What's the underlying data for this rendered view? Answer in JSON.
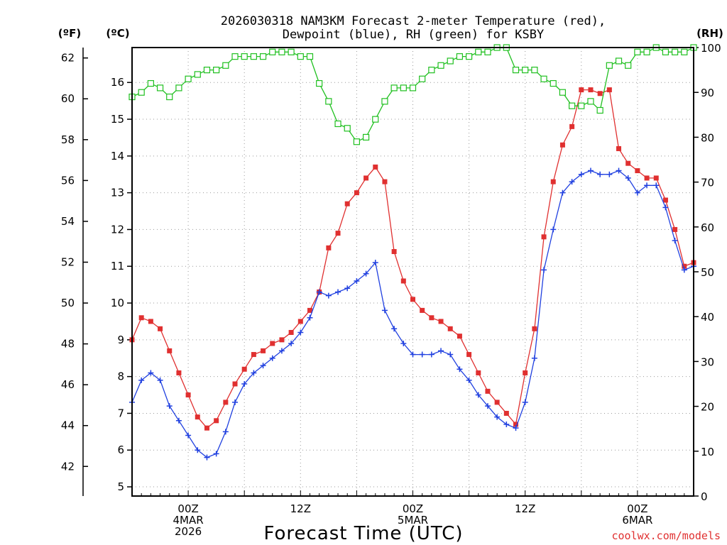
{
  "chart_data": {
    "type": "line",
    "title_line1": "2026030318 NAM3KM Forecast 2-meter Temperature (red),",
    "title_line2": "Dewpoint (blue), RH (green) for KSBY",
    "xlabel": "Forecast Time (UTC)",
    "credit": "coolwx.com/models",
    "unit_f": "(ºF)",
    "unit_c": "(ºC)",
    "unit_rh": "(RH)",
    "colors": {
      "temperature": "#e03030",
      "dewpoint": "#2040e0",
      "rh": "#20c020"
    },
    "x_hours": {
      "min": 0,
      "max": 60,
      "step": 1,
      "note": "hours after 2026-03-03 18Z"
    },
    "celsius_ylim": [
      4.75,
      16.95
    ],
    "fahrenheit_ylim": [
      40.55,
      62.51
    ],
    "rh_ylim": [
      0,
      100
    ],
    "celsius_ticks": [
      5,
      6,
      7,
      8,
      9,
      10,
      11,
      12,
      13,
      14,
      15,
      16
    ],
    "fahrenheit_ticks": [
      42,
      44,
      46,
      48,
      50,
      52,
      54,
      56,
      58,
      60,
      62
    ],
    "rh_ticks": [
      0,
      10,
      20,
      30,
      40,
      50,
      60,
      70,
      80,
      90,
      100
    ],
    "x_ticks": [
      {
        "hour": 6,
        "lines": [
          "00Z",
          "4MAR",
          "2026"
        ]
      },
      {
        "hour": 18,
        "lines": [
          "12Z"
        ]
      },
      {
        "hour": 30,
        "lines": [
          "00Z",
          "5MAR"
        ]
      },
      {
        "hour": 42,
        "lines": [
          "12Z"
        ]
      },
      {
        "hour": 54,
        "lines": [
          "00Z",
          "6MAR"
        ]
      }
    ],
    "series": [
      {
        "name": "Temperature (°C)",
        "values": [
          9.0,
          9.6,
          9.5,
          9.3,
          8.7,
          8.1,
          7.5,
          6.9,
          6.6,
          6.8,
          7.3,
          7.8,
          8.2,
          8.6,
          8.7,
          8.9,
          9.0,
          9.2,
          9.5,
          9.8,
          10.3,
          11.5,
          11.9,
          12.7,
          13.0,
          13.4,
          13.7,
          13.3,
          11.4,
          10.6,
          10.1,
          9.8,
          9.6,
          9.5,
          9.3,
          9.1,
          8.6,
          8.1,
          7.6,
          7.3,
          7.0,
          6.7,
          8.1,
          9.3,
          11.8,
          13.3,
          14.3,
          14.8,
          15.8,
          15.8,
          15.7,
          15.8,
          14.2,
          13.8,
          13.6,
          13.4,
          13.4,
          12.8,
          12.0,
          11.0,
          11.1
        ]
      },
      {
        "name": "Dewpoint (°C)",
        "values": [
          7.3,
          7.9,
          8.1,
          7.9,
          7.2,
          6.8,
          6.4,
          6.0,
          5.8,
          5.9,
          6.5,
          7.3,
          7.8,
          8.1,
          8.3,
          8.5,
          8.7,
          8.9,
          9.2,
          9.6,
          10.3,
          10.2,
          10.3,
          10.4,
          10.6,
          10.8,
          11.1,
          9.8,
          9.3,
          8.9,
          8.6,
          8.6,
          8.6,
          8.7,
          8.6,
          8.2,
          7.9,
          7.5,
          7.2,
          6.9,
          6.7,
          6.6,
          7.3,
          8.5,
          10.9,
          12.0,
          13.0,
          13.3,
          13.5,
          13.6,
          13.5,
          13.5,
          13.6,
          13.4,
          13.0,
          13.2,
          13.2,
          12.6,
          11.7,
          10.9,
          11.0
        ]
      },
      {
        "name": "RH (%)",
        "values": [
          89,
          90,
          92,
          91,
          89,
          91,
          93,
          94,
          95,
          95,
          96,
          98,
          98,
          98,
          98,
          99,
          99,
          99,
          98,
          98,
          92,
          88,
          83,
          82,
          79,
          80,
          84,
          88,
          91,
          91,
          91,
          93,
          95,
          96,
          97,
          98,
          98,
          99,
          99,
          100,
          100,
          95,
          95,
          95,
          93,
          92,
          90,
          87,
          87,
          88,
          86,
          96,
          97,
          96,
          99,
          99,
          100,
          99,
          99,
          99,
          100
        ]
      }
    ]
  }
}
